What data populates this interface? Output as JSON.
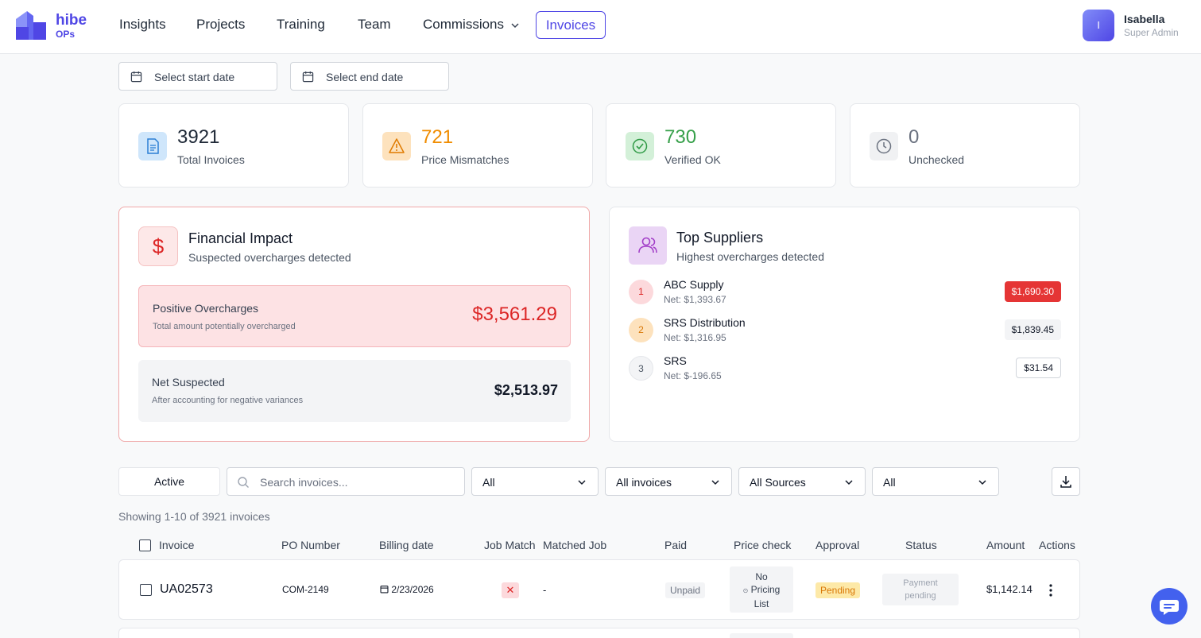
{
  "brand": {
    "name": "hibe",
    "sub": "OPs",
    "color": "#4f46e5"
  },
  "nav": {
    "items": [
      "Insights",
      "Projects",
      "Training",
      "Team",
      "Commissions"
    ],
    "active": "Invoices"
  },
  "user": {
    "initial": "I",
    "name": "Isabella",
    "role": "Super Admin"
  },
  "dates": {
    "start_placeholder": "Select start date",
    "end_placeholder": "Select end date"
  },
  "stats": [
    {
      "value": "3921",
      "label": "Total Invoices",
      "icon": "document-icon",
      "color": "#1f2937"
    },
    {
      "value": "721",
      "label": "Price Mismatches",
      "icon": "warning-icon",
      "color": "#f08c00"
    },
    {
      "value": "730",
      "label": "Verified OK",
      "icon": "check-circle-icon",
      "color": "#37a04a"
    },
    {
      "value": "0",
      "label": "Unchecked",
      "icon": "clock-icon",
      "color": "#6b7280"
    }
  ],
  "financial": {
    "title": "Financial Impact",
    "subtitle": "Suspected overcharges detected",
    "icon_glyph": "$",
    "positive": {
      "title": "Positive Overcharges",
      "sub": "Total amount potentially overcharged",
      "amount": "$3,561.29"
    },
    "net": {
      "title": "Net Suspected",
      "sub": "After accounting for negative variances",
      "amount": "$2,513.97"
    }
  },
  "suppliers": {
    "title": "Top Suppliers",
    "subtitle": "Highest overcharges detected",
    "items": [
      {
        "rank": "1",
        "name": "ABC Supply",
        "net": "Net: $1,393.67",
        "amount": "$1,690.30"
      },
      {
        "rank": "2",
        "name": "SRS Distribution",
        "net": "Net: $1,316.95",
        "amount": "$1,839.45"
      },
      {
        "rank": "3",
        "name": "SRS",
        "net": "Net: $-196.65",
        "amount": "$31.54"
      }
    ]
  },
  "filters": {
    "active_label": "Active",
    "search_placeholder": "Search invoices...",
    "selects": [
      "All",
      "All invoices",
      "All Sources",
      "All"
    ]
  },
  "showing": "Showing 1-10 of 3921 invoices",
  "table": {
    "headers": [
      "Invoice",
      "PO Number",
      "Billing date",
      "Job Match",
      "Matched Job",
      "Paid",
      "Price check",
      "Approval",
      "Status",
      "Amount",
      "Actions"
    ],
    "rows": [
      {
        "invoice": "UA02573",
        "po": "COM-2149",
        "billing_date": "2/23/2026",
        "job_match": "✕",
        "matched_job": "-",
        "paid": "Unpaid",
        "price_check": [
          "No",
          "Pricing",
          "List"
        ],
        "approval": "Pending",
        "status": [
          "Payment",
          "pending"
        ],
        "amount": "$1,142.14"
      }
    ]
  }
}
